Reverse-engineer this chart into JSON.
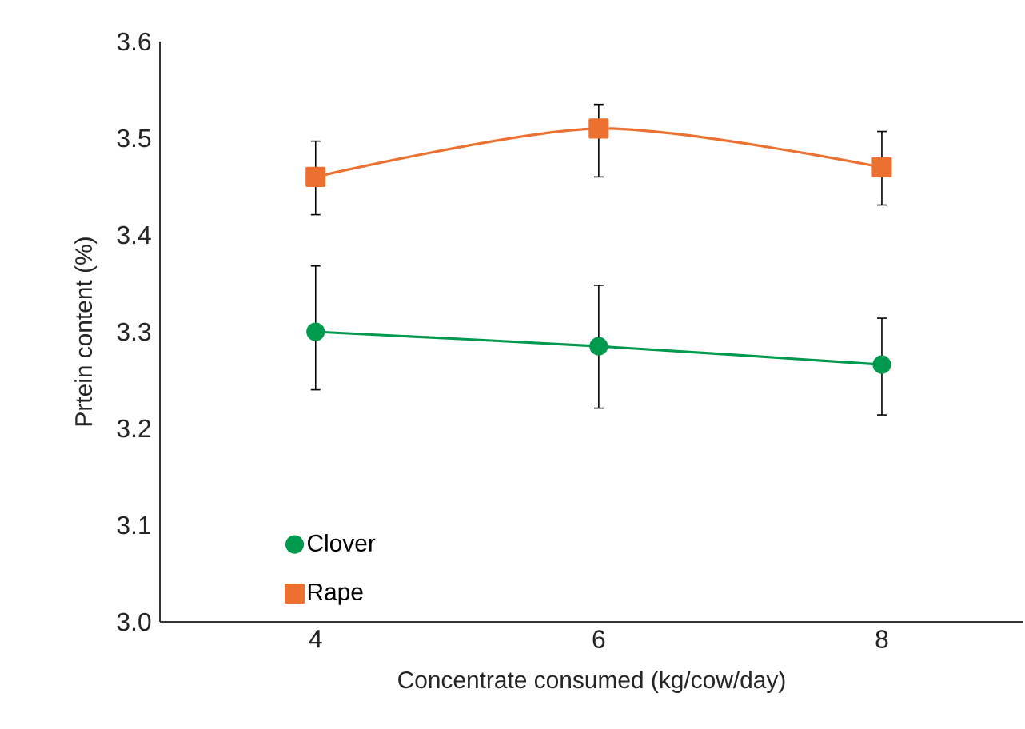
{
  "chart_data": {
    "type": "line",
    "xlabel": "Concentrate consumed (kg/cow/day)",
    "ylabel": "Prtein content (%)",
    "x": [
      4,
      6,
      8
    ],
    "series": [
      {
        "name": "Clover",
        "color": "#009a4e",
        "marker": "circle",
        "values": [
          3.3,
          3.285,
          3.266
        ],
        "errors": [
          [
            3.24,
            3.368
          ],
          [
            3.221,
            3.348
          ],
          [
            3.214,
            3.314
          ]
        ]
      },
      {
        "name": "Rape",
        "color": "#ec7030",
        "marker": "square",
        "values": [
          3.46,
          3.51,
          3.47
        ],
        "errors": [
          [
            3.421,
            3.497
          ],
          [
            3.46,
            3.535
          ],
          [
            3.431,
            3.507
          ]
        ]
      }
    ],
    "xlim": [
      2.9,
      9.0
    ],
    "ylim": [
      3.0,
      3.6
    ],
    "xticks": [
      4,
      6,
      8
    ],
    "yticks": [
      {
        "value": 3.0,
        "label": "3.0"
      },
      {
        "value": 3.1,
        "label": "3.1"
      },
      {
        "value": 3.2,
        "label": "3.2"
      },
      {
        "value": 3.3,
        "label": "3.3"
      },
      {
        "value": 3.4,
        "label": "3.4"
      },
      {
        "value": 3.5,
        "label": "3.5"
      },
      {
        "value": 3.6,
        "label": "3.6"
      }
    ],
    "grid": false,
    "legend": "bottom left"
  }
}
